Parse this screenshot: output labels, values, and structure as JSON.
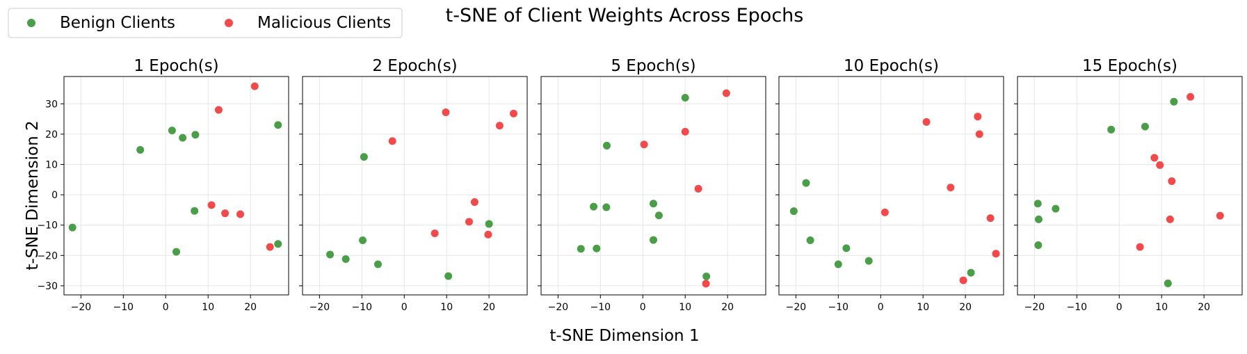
{
  "figure": {
    "suptitle": "t-SNE of Client Weights Across Epochs",
    "xlabel": "t-SNE Dimension 1",
    "ylabel": "t-SNE Dimension 2",
    "legend": [
      {
        "label": "Benign Clients",
        "color": "#4a9e48"
      },
      {
        "label": "Malicious Clients",
        "color": "#f24a4a"
      }
    ],
    "legend_placement": "top-left"
  },
  "colors": {
    "benign": "#4a9e48",
    "malicious": "#f24a4a",
    "grid": "#e6e6e6"
  },
  "chart_data": [
    {
      "type": "scatter",
      "title": "1 Epoch(s)",
      "xlim": [
        -24,
        29
      ],
      "ylim": [
        -33,
        39
      ],
      "grid": true,
      "xticks": [
        -20,
        -10,
        0,
        10,
        20
      ],
      "yticks": [
        -30,
        -20,
        -10,
        0,
        10,
        20,
        30
      ],
      "series": [
        {
          "name": "Benign Clients",
          "points": [
            [
              -22,
              -10.8
            ],
            [
              -6,
              14.8
            ],
            [
              1.5,
              21.2
            ],
            [
              4,
              18.8
            ],
            [
              7,
              19.8
            ],
            [
              26.5,
              23
            ],
            [
              6.8,
              -5.3
            ],
            [
              2.5,
              -18.8
            ],
            [
              26.5,
              -16.2
            ]
          ]
        },
        {
          "name": "Malicious Clients",
          "points": [
            [
              21,
              35.8
            ],
            [
              12.5,
              28
            ],
            [
              10.8,
              -3.4
            ],
            [
              14,
              -6.1
            ],
            [
              17.6,
              -6.4
            ],
            [
              24.6,
              -17.2
            ]
          ]
        }
      ]
    },
    {
      "type": "scatter",
      "title": "2 Epoch(s)",
      "xlim": [
        -24,
        29
      ],
      "ylim": [
        -33,
        39
      ],
      "grid": true,
      "xticks": [
        -20,
        -10,
        0,
        10,
        20
      ],
      "yticks": [
        -30,
        -20,
        -10,
        0,
        10,
        20,
        30
      ],
      "series": [
        {
          "name": "Benign Clients",
          "points": [
            [
              -9.5,
              12.5
            ],
            [
              20,
              -9.6
            ],
            [
              -9.8,
              -15
            ],
            [
              -17.5,
              -19.7
            ],
            [
              -13.8,
              -21.2
            ],
            [
              -6.2,
              -22.9
            ],
            [
              10.4,
              -26.8
            ]
          ]
        },
        {
          "name": "Malicious Clients",
          "points": [
            [
              -2.8,
              17.7
            ],
            [
              9.8,
              27.2
            ],
            [
              22.5,
              22.8
            ],
            [
              25.8,
              26.8
            ],
            [
              16.6,
              -2.4
            ],
            [
              15.3,
              -8.9
            ],
            [
              7.2,
              -12.7
            ],
            [
              19.8,
              -13.1
            ]
          ]
        }
      ]
    },
    {
      "type": "scatter",
      "title": "5 Epoch(s)",
      "xlim": [
        -24,
        29
      ],
      "ylim": [
        -33,
        39
      ],
      "grid": true,
      "xticks": [
        -20,
        -10,
        0,
        10,
        20
      ],
      "yticks": [
        -30,
        -20,
        -10,
        0,
        10,
        20,
        30
      ],
      "series": [
        {
          "name": "Benign Clients",
          "points": [
            [
              10,
              32
            ],
            [
              -8.5,
              16.2
            ],
            [
              -11.6,
              -3.9
            ],
            [
              -8.6,
              -4.1
            ],
            [
              2.5,
              -2.9
            ],
            [
              3.8,
              -6.8
            ],
            [
              -14.6,
              -17.8
            ],
            [
              -10.9,
              -17.7
            ],
            [
              2.5,
              -14.9
            ],
            [
              15,
              -26.9
            ]
          ]
        },
        {
          "name": "Malicious Clients",
          "points": [
            [
              19.7,
              33.5
            ],
            [
              10,
              20.8
            ],
            [
              0.3,
              16.6
            ],
            [
              13.1,
              2
            ],
            [
              14.9,
              -29.3
            ]
          ]
        }
      ]
    },
    {
      "type": "scatter",
      "title": "10 Epoch(s)",
      "xlim": [
        -24,
        29
      ],
      "ylim": [
        -33,
        39
      ],
      "grid": true,
      "xticks": [
        -20,
        -10,
        0,
        10,
        20
      ],
      "yticks": [
        -30,
        -20,
        -10,
        0,
        10,
        20,
        30
      ],
      "series": [
        {
          "name": "Benign Clients",
          "points": [
            [
              -17.6,
              3.9
            ],
            [
              -20.5,
              -5.4
            ],
            [
              -16.6,
              -15
            ],
            [
              -8.1,
              -17.6
            ],
            [
              -10,
              -22.9
            ],
            [
              -2.8,
              -21.8
            ],
            [
              21.3,
              -25.7
            ]
          ]
        },
        {
          "name": "Malicious Clients",
          "points": [
            [
              10.8,
              24
            ],
            [
              22.9,
              25.8
            ],
            [
              23.3,
              20
            ],
            [
              16.5,
              2.4
            ],
            [
              1,
              -5.8
            ],
            [
              25.9,
              -7.7
            ],
            [
              27.2,
              -19.4
            ],
            [
              19.5,
              -28.2
            ]
          ]
        }
      ]
    },
    {
      "type": "scatter",
      "title": "15 Epoch(s)",
      "xlim": [
        -24,
        29
      ],
      "ylim": [
        -33,
        39
      ],
      "grid": true,
      "xticks": [
        -20,
        -10,
        0,
        10,
        20
      ],
      "yticks": [
        -30,
        -20,
        -10,
        0,
        10,
        20,
        30
      ],
      "series": [
        {
          "name": "Benign Clients",
          "points": [
            [
              12.9,
              30.7
            ],
            [
              -1.9,
              21.5
            ],
            [
              6.1,
              22.5
            ],
            [
              -19.2,
              -2.9
            ],
            [
              -15,
              -4.6
            ],
            [
              -19,
              -8.1
            ],
            [
              -19.1,
              -16.6
            ],
            [
              11.5,
              -29.2
            ]
          ]
        },
        {
          "name": "Malicious Clients",
          "points": [
            [
              16.8,
              32.3
            ],
            [
              8.3,
              12.2
            ],
            [
              9.6,
              9.8
            ],
            [
              12.4,
              4.5
            ],
            [
              12,
              -8.1
            ],
            [
              4.9,
              -17.2
            ],
            [
              23.8,
              -6.9
            ]
          ]
        }
      ]
    }
  ]
}
